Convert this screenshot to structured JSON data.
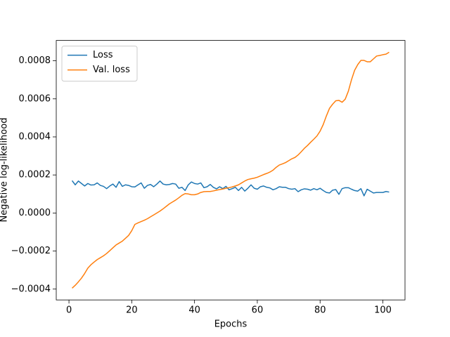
{
  "chart_data": {
    "type": "line",
    "xlabel": "Epochs",
    "ylabel": "Negative log-likelihood",
    "x": [
      1,
      2,
      3,
      4,
      5,
      6,
      7,
      8,
      9,
      10,
      11,
      12,
      13,
      14,
      15,
      16,
      17,
      18,
      19,
      20,
      21,
      22,
      23,
      24,
      25,
      26,
      27,
      28,
      29,
      30,
      31,
      32,
      33,
      34,
      35,
      36,
      37,
      38,
      39,
      40,
      41,
      42,
      43,
      44,
      45,
      46,
      47,
      48,
      49,
      50,
      51,
      52,
      53,
      54,
      55,
      56,
      57,
      58,
      59,
      60,
      61,
      62,
      63,
      64,
      65,
      66,
      67,
      68,
      69,
      70,
      71,
      72,
      73,
      74,
      75,
      76,
      77,
      78,
      79,
      80,
      81,
      82,
      83,
      84,
      85,
      86,
      87,
      88,
      89,
      90,
      91,
      92,
      93,
      94,
      95,
      96,
      97,
      98,
      99,
      100,
      101,
      102
    ],
    "series": [
      {
        "name": "Loss",
        "color": "#1f77b4",
        "values": [
          0.00017,
          0.000148,
          0.000168,
          0.000155,
          0.000142,
          0.000155,
          0.000147,
          0.000148,
          0.000158,
          0.000145,
          0.00014,
          0.000128,
          0.000142,
          0.000152,
          0.000135,
          0.000165,
          0.00014,
          0.000148,
          0.000145,
          0.000138,
          0.000137,
          0.000148,
          0.000158,
          0.00013,
          0.000145,
          0.00015,
          0.000138,
          0.000152,
          0.000168,
          0.000152,
          0.000148,
          0.00015,
          0.000155,
          0.000152,
          0.00013,
          0.000135,
          0.000118,
          0.000148,
          0.000163,
          0.000155,
          0.000152,
          0.000158,
          0.000133,
          0.000138,
          0.00015,
          0.000135,
          0.000127,
          0.000138,
          0.000128,
          0.00014,
          0.000122,
          0.000128,
          0.000135,
          0.000118,
          0.000135,
          0.000115,
          0.00013,
          0.000148,
          0.00013,
          0.000125,
          0.000138,
          0.000142,
          0.000135,
          0.000132,
          0.000122,
          0.000128,
          0.000138,
          0.000135,
          0.000135,
          0.000128,
          0.000125,
          0.000128,
          0.000112,
          0.000122,
          0.000127,
          0.000125,
          0.00012,
          0.000128,
          0.000122,
          0.00013,
          0.000118,
          0.000108,
          0.000105,
          0.00012,
          0.000123,
          9.8e-05,
          0.000128,
          0.000133,
          0.000133,
          0.000125,
          0.000118,
          0.000115,
          0.000128,
          9e-05,
          0.000125,
          0.000115,
          0.000105,
          0.000108,
          0.000108,
          0.000108,
          0.000113,
          0.00011
        ]
      },
      {
        "name": "Val. loss",
        "color": "#ff7f0e",
        "values": [
          -0.000395,
          -0.00038,
          -0.000362,
          -0.000342,
          -0.000318,
          -0.00029,
          -0.000272,
          -0.000258,
          -0.000245,
          -0.000235,
          -0.000225,
          -0.000213,
          -0.000198,
          -0.000183,
          -0.000168,
          -0.000158,
          -0.000148,
          -0.000133,
          -0.000118,
          -9.3e-05,
          -6e-05,
          -5.2e-05,
          -4.5e-05,
          -3.8e-05,
          -3e-05,
          -2e-05,
          -1e-05,
          0,
          1e-05,
          2.2e-05,
          3.5e-05,
          4.8e-05,
          5.8e-05,
          6.8e-05,
          8e-05,
          9.3e-05,
          0.000102,
          0.0001,
          9.6e-05,
          9.6e-05,
          0.0001,
          0.000108,
          0.000112,
          0.000113,
          0.000113,
          0.000116,
          0.00012,
          0.000123,
          0.000126,
          0.00013,
          0.000133,
          0.000137,
          0.000142,
          0.000148,
          0.000158,
          0.000168,
          0.000176,
          0.00018,
          0.000183,
          0.000188,
          0.000195,
          0.000202,
          0.000208,
          0.000215,
          0.000225,
          0.00024,
          0.000252,
          0.000258,
          0.000265,
          0.000275,
          0.000285,
          0.000292,
          0.000305,
          0.000322,
          0.00034,
          0.000355,
          0.000372,
          0.000388,
          0.000405,
          0.00043,
          0.000465,
          0.00051,
          0.00055,
          0.000572,
          0.00059,
          0.000592,
          0.000582,
          0.000598,
          0.00064,
          0.0007,
          0.00075,
          0.00078,
          0.000802,
          0.000802,
          0.000795,
          0.000795,
          0.00081,
          0.000825,
          0.000828,
          0.000832,
          0.000835,
          0.000845
        ]
      }
    ],
    "xlim": [
      -4.05,
      107.05
    ],
    "xticks": [
      0,
      20,
      40,
      60,
      80,
      100
    ],
    "ylim": [
      -0.000457,
      0.000907
    ],
    "yticks": [
      {
        "value": -0.0004,
        "label": "−0.0004"
      },
      {
        "value": -0.0002,
        "label": "−0.0002"
      },
      {
        "value": 0,
        "label": "0.0000"
      },
      0.0002,
      0.0004,
      0.0006,
      0.0008
    ],
    "legend": "upper left",
    "grid": false
  }
}
